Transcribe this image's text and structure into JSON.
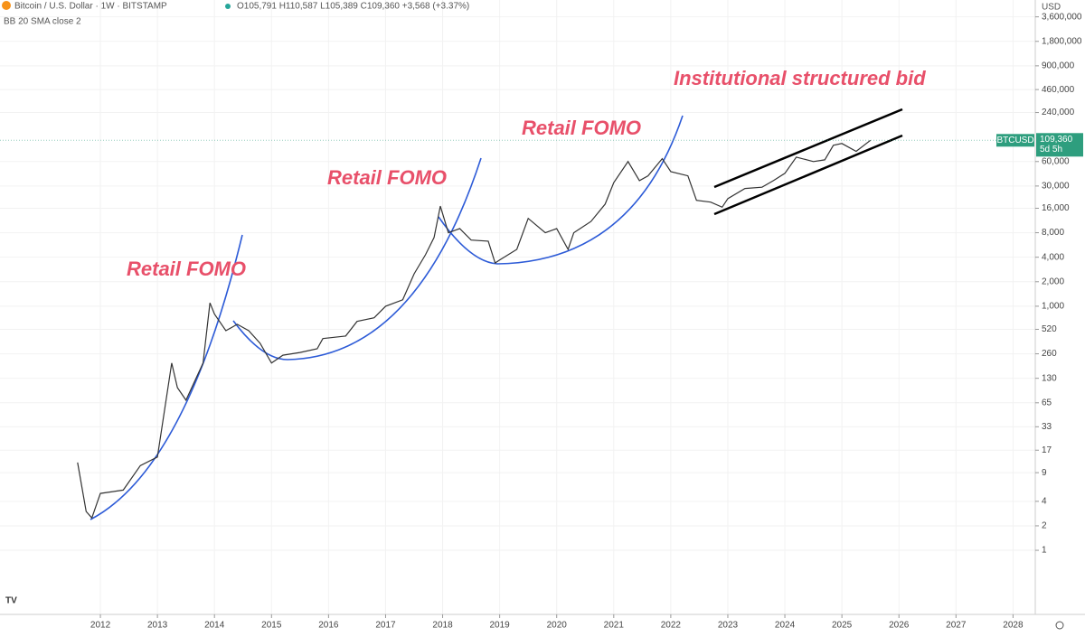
{
  "chart_data": {
    "type": "line",
    "title": "Bitcoin / U.S. Dollar · 1W · BITSTAMP",
    "subtitle": "O105,791 H110,587 L105,389 C109,360 +3,568 (+3.37%)",
    "indicator": "BB 20 SMA close 2",
    "y_unit": "USD",
    "log_scale": true,
    "grid": true,
    "x": [
      2011.6,
      2011.75,
      2011.85,
      2012.0,
      2012.4,
      2012.7,
      2013.0,
      2013.25,
      2013.35,
      2013.5,
      2013.8,
      2013.92,
      2014.0,
      2014.2,
      2014.4,
      2014.6,
      2014.8,
      2015.0,
      2015.2,
      2015.5,
      2015.8,
      2015.9,
      2016.3,
      2016.5,
      2016.8,
      2017.0,
      2017.3,
      2017.5,
      2017.7,
      2017.85,
      2017.96,
      2018.1,
      2018.3,
      2018.5,
      2018.8,
      2018.92,
      2019.0,
      2019.3,
      2019.5,
      2019.8,
      2020.0,
      2020.2,
      2020.3,
      2020.6,
      2020.85,
      2021.0,
      2021.25,
      2021.45,
      2021.6,
      2021.85,
      2022.0,
      2022.3,
      2022.45,
      2022.7,
      2022.9,
      2023.0,
      2023.3,
      2023.6,
      2023.8,
      2024.0,
      2024.2,
      2024.5,
      2024.7,
      2024.85,
      2025.0,
      2025.25,
      2025.5
    ],
    "series": [
      {
        "name": "BTCUSD",
        "color": "#333333",
        "values": [
          12,
          3,
          2.5,
          5,
          5.5,
          11,
          14,
          200,
          100,
          70,
          200,
          1100,
          800,
          500,
          600,
          500,
          350,
          200,
          250,
          270,
          300,
          400,
          430,
          650,
          720,
          1000,
          1200,
          2500,
          4300,
          7000,
          17000,
          8000,
          9000,
          6500,
          6300,
          3400,
          3700,
          5000,
          12000,
          8000,
          9000,
          5000,
          8000,
          11000,
          18000,
          33000,
          60000,
          35000,
          40000,
          65000,
          45000,
          40000,
          20000,
          19000,
          16500,
          21000,
          28000,
          29000,
          35000,
          43000,
          68000,
          60000,
          63000,
          95000,
          100000,
          80000,
          109360
        ],
        "last_price_label": "109,360",
        "countdown": "5d 5h",
        "label_color": "#2e9e7e"
      }
    ],
    "xlim": [
      2010.24,
      2028.39
    ],
    "xticks": [
      2012,
      2013,
      2014,
      2015,
      2016,
      2017,
      2018,
      2019,
      2020,
      2021,
      2022,
      2023,
      2024,
      2025,
      2026,
      2027,
      2028
    ],
    "ylim": [
      0.163,
      5800000
    ],
    "yticks": [
      1,
      2,
      4,
      9,
      17,
      33,
      65,
      130,
      260,
      520,
      {
        "value": 1000,
        "label": "1,000"
      },
      {
        "value": 2000,
        "label": "2,000"
      },
      {
        "value": 4000,
        "label": "4,000"
      },
      {
        "value": 8000,
        "label": "8,000"
      },
      {
        "value": 16000,
        "label": "16,000"
      },
      {
        "value": 30000,
        "label": "30,000"
      },
      {
        "value": 60000,
        "label": "60,000"
      },
      {
        "value": 240000,
        "label": "240,000"
      },
      {
        "value": 460000,
        "label": "460,000"
      },
      {
        "value": 900000,
        "label": "900,000"
      },
      {
        "value": 1800000,
        "label": "1,800,000"
      },
      {
        "value": 3600000,
        "label": "3,600,000"
      }
    ],
    "annotations": [
      "Retail FOMO",
      "Retail FOMO",
      "Retail FOMO",
      "Institutional structured bid"
    ]
  }
}
